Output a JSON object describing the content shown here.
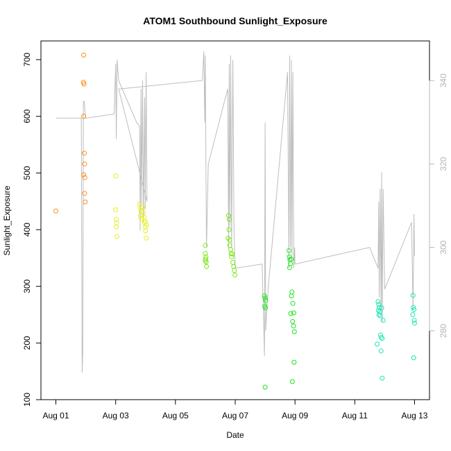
{
  "chart_data": {
    "type": "scatter",
    "title": "ATOM1 Southbound Sunlight_Exposure",
    "xlabel": "Date",
    "ylabel": "Sunlight_Exposure",
    "x_unit": "days since Aug 01",
    "xlim": [
      -0.5,
      12.5
    ],
    "ylim": [
      100,
      733
    ],
    "x_ticks": [
      {
        "value": 0,
        "label": "Aug 01"
      },
      {
        "value": 2,
        "label": "Aug 03"
      },
      {
        "value": 4,
        "label": "Aug 05"
      },
      {
        "value": 6,
        "label": "Aug 07"
      },
      {
        "value": 8,
        "label": "Aug 09"
      },
      {
        "value": 10,
        "label": "Aug 11"
      },
      {
        "value": 12,
        "label": "Aug 13"
      }
    ],
    "y_ticks": [
      100,
      200,
      300,
      400,
      500,
      600,
      700
    ],
    "y2lim": [
      263.5,
      349.5
    ],
    "y2_ticks": [
      280,
      300,
      320,
      340
    ],
    "grid": false,
    "series": [
      {
        "color": "#ff8c1a",
        "points": [
          [
            0.0,
            433
          ],
          [
            0.93,
            708
          ],
          [
            0.92,
            660
          ],
          [
            0.94,
            657
          ],
          [
            0.93,
            600
          ],
          [
            0.95,
            535
          ],
          [
            0.96,
            516
          ],
          [
            0.93,
            497
          ],
          [
            0.97,
            492
          ],
          [
            0.96,
            464
          ],
          [
            0.98,
            449
          ]
        ]
      },
      {
        "color": "#e6f01a",
        "points": [
          [
            2.0,
            495
          ],
          [
            2.0,
            435
          ],
          [
            2.02,
            418
          ],
          [
            2.03,
            412
          ],
          [
            2.02,
            405
          ],
          [
            2.04,
            388
          ],
          [
            2.8,
            445
          ],
          [
            2.82,
            438
          ],
          [
            2.85,
            432
          ],
          [
            2.83,
            425
          ],
          [
            2.86,
            420
          ],
          [
            2.9,
            440
          ],
          [
            2.92,
            430
          ],
          [
            2.95,
            422
          ],
          [
            2.97,
            412
          ],
          [
            2.99,
            405
          ],
          [
            3.0,
            398
          ],
          [
            3.02,
            385
          ],
          [
            2.98,
            415
          ],
          [
            3.03,
            408
          ]
        ]
      },
      {
        "color": "#7fe61a",
        "points": [
          [
            5.0,
            372
          ],
          [
            5.0,
            358
          ],
          [
            5.02,
            352
          ],
          [
            5.01,
            348
          ],
          [
            5.03,
            343
          ],
          [
            5.04,
            335
          ],
          [
            5.0,
            345
          ],
          [
            5.78,
            425
          ],
          [
            5.8,
            418
          ],
          [
            5.79,
            400
          ],
          [
            5.76,
            385
          ],
          [
            5.81,
            382
          ],
          [
            5.82,
            372
          ],
          [
            5.85,
            365
          ],
          [
            5.86,
            358
          ],
          [
            5.88,
            352
          ],
          [
            5.9,
            357
          ],
          [
            5.92,
            342
          ],
          [
            5.95,
            335
          ],
          [
            5.97,
            328
          ],
          [
            5.99,
            320
          ]
        ]
      },
      {
        "color": "#1ae61a",
        "points": [
          [
            6.98,
            283
          ],
          [
            7.0,
            279
          ],
          [
            7.02,
            275
          ],
          [
            6.99,
            265
          ],
          [
            7.01,
            262
          ],
          [
            7.0,
            122
          ],
          [
            7.8,
            363
          ],
          [
            7.81,
            352
          ],
          [
            7.83,
            347
          ],
          [
            7.85,
            340
          ],
          [
            7.87,
            348
          ],
          [
            7.82,
            333
          ],
          [
            7.9,
            290
          ],
          [
            7.88,
            283
          ],
          [
            7.93,
            270
          ],
          [
            7.86,
            252
          ],
          [
            7.96,
            253
          ],
          [
            7.92,
            238
          ],
          [
            7.95,
            230
          ],
          [
            7.98,
            220
          ],
          [
            7.97,
            166
          ],
          [
            7.91,
            132
          ]
        ]
      },
      {
        "color": "#1ae6b4",
        "points": [
          [
            10.78,
            273
          ],
          [
            10.8,
            268
          ],
          [
            10.82,
            263
          ],
          [
            10.79,
            258
          ],
          [
            10.83,
            255
          ],
          [
            10.81,
            250
          ],
          [
            10.85,
            248
          ],
          [
            10.9,
            262
          ],
          [
            10.86,
            214
          ],
          [
            10.88,
            210
          ],
          [
            10.92,
            208
          ],
          [
            10.95,
            240
          ],
          [
            10.75,
            198
          ],
          [
            10.88,
            186
          ],
          [
            10.92,
            138
          ],
          [
            11.95,
            284
          ],
          [
            11.96,
            263
          ],
          [
            11.98,
            259
          ],
          [
            11.94,
            250
          ],
          [
            11.99,
            240
          ],
          [
            12.0,
            235
          ],
          [
            11.97,
            174
          ]
        ]
      }
    ],
    "secondary_trace": {
      "color": "#bdbdbd",
      "axis": "right",
      "points": [
        [
          0.0,
          331
        ],
        [
          0.7,
          331
        ],
        [
          0.85,
          331
        ],
        [
          0.88,
          270
        ],
        [
          0.9,
          275
        ],
        [
          0.92,
          335
        ],
        [
          0.95,
          335
        ],
        [
          0.97,
          333
        ],
        [
          1.0,
          331
        ],
        [
          1.5,
          331.5
        ],
        [
          1.95,
          332
        ],
        [
          2.0,
          344
        ],
        [
          2.02,
          326
        ],
        [
          2.05,
          345
        ],
        [
          2.1,
          340
        ],
        [
          2.7,
          330
        ],
        [
          2.8,
          329
        ],
        [
          2.82,
          304
        ],
        [
          2.85,
          338
        ],
        [
          2.87,
          310
        ],
        [
          2.9,
          340
        ],
        [
          2.93,
          306
        ],
        [
          2.97,
          336
        ],
        [
          2.99,
          309
        ],
        [
          3.02,
          342
        ],
        [
          3.05,
          311
        ],
        [
          2.1,
          338
        ],
        [
          2.15,
          338
        ],
        [
          4.9,
          340
        ],
        [
          4.95,
          347
        ],
        [
          4.98,
          330
        ],
        [
          5.0,
          346
        ],
        [
          5.02,
          320
        ],
        [
          5.04,
          300
        ],
        [
          5.1,
          320
        ],
        [
          5.75,
          338
        ],
        [
          5.78,
          300
        ],
        [
          5.8,
          344
        ],
        [
          5.82,
          305
        ],
        [
          5.85,
          346
        ],
        [
          5.88,
          300
        ],
        [
          5.92,
          345
        ],
        [
          5.96,
          303
        ],
        [
          6.0,
          295
        ],
        [
          6.9,
          296
        ],
        [
          6.98,
          274
        ],
        [
          7.0,
          330
        ],
        [
          7.02,
          280
        ],
        [
          7.1,
          290
        ],
        [
          7.75,
          342
        ],
        [
          7.8,
          295
        ],
        [
          7.82,
          346
        ],
        [
          7.85,
          300
        ],
        [
          7.88,
          345
        ],
        [
          7.9,
          298
        ],
        [
          7.93,
          342
        ],
        [
          7.96,
          295
        ],
        [
          7.99,
          300
        ],
        [
          8.0,
          296
        ],
        [
          10.5,
          300
        ],
        [
          10.78,
          295
        ],
        [
          10.8,
          311
        ],
        [
          10.82,
          288
        ],
        [
          10.85,
          314
        ],
        [
          10.88,
          285
        ],
        [
          10.9,
          318
        ],
        [
          10.92,
          282
        ],
        [
          10.95,
          314
        ],
        [
          11.0,
          290
        ],
        [
          11.9,
          306
        ],
        [
          11.95,
          285
        ],
        [
          11.98,
          308
        ],
        [
          12.0,
          298
        ]
      ]
    }
  }
}
